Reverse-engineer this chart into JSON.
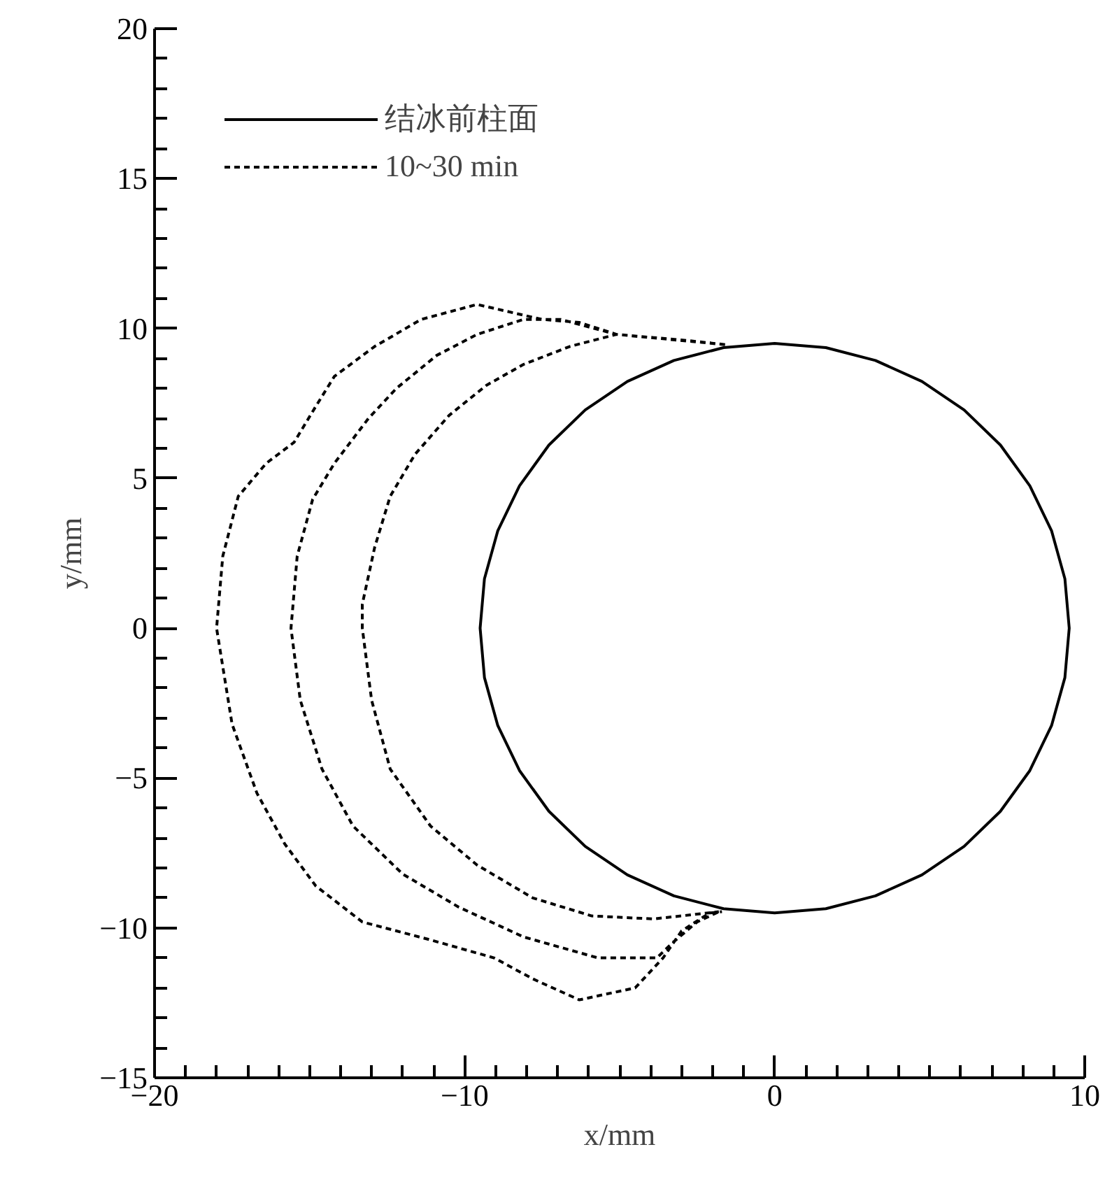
{
  "chart_data": {
    "type": "line",
    "xlabel": "x/mm",
    "ylabel": "y/mm",
    "legend": "top left",
    "grid": false,
    "xlim": [
      -20,
      10
    ],
    "ylim": [
      -15,
      20
    ],
    "xticks": [
      {
        "value": -20,
        "label": "−20"
      },
      {
        "value": -19,
        "label": null
      },
      {
        "value": -18,
        "label": null
      },
      {
        "value": -17,
        "label": null
      },
      {
        "value": -16,
        "label": null
      },
      {
        "value": -15,
        "label": null
      },
      {
        "value": -14,
        "label": null
      },
      {
        "value": -13,
        "label": null
      },
      {
        "value": -12,
        "label": null
      },
      {
        "value": -11,
        "label": null
      },
      {
        "value": -10,
        "label": "−10"
      },
      {
        "value": -9,
        "label": null
      },
      {
        "value": -8,
        "label": null
      },
      {
        "value": -7,
        "label": null
      },
      {
        "value": -6,
        "label": null
      },
      {
        "value": -5,
        "label": null
      },
      {
        "value": -4,
        "label": null
      },
      {
        "value": -3,
        "label": null
      },
      {
        "value": -2,
        "label": null
      },
      {
        "value": -1,
        "label": null
      },
      0,
      {
        "value": 1,
        "label": null
      },
      {
        "value": 2,
        "label": null
      },
      {
        "value": 3,
        "label": null
      },
      {
        "value": 4,
        "label": null
      },
      {
        "value": 5,
        "label": null
      },
      {
        "value": 6,
        "label": null
      },
      {
        "value": 7,
        "label": null
      },
      {
        "value": 8,
        "label": null
      },
      {
        "value": 9,
        "label": null
      },
      10
    ],
    "yticks": [
      {
        "value": -15,
        "label": "−15"
      },
      {
        "value": -14,
        "label": null
      },
      {
        "value": -13,
        "label": null
      },
      {
        "value": -12,
        "label": null
      },
      {
        "value": -11,
        "label": null
      },
      {
        "value": -10,
        "label": "−10"
      },
      {
        "value": -9,
        "label": null
      },
      {
        "value": -8,
        "label": null
      },
      {
        "value": -7,
        "label": null
      },
      {
        "value": -6,
        "label": null
      },
      {
        "value": -5,
        "label": "−5"
      },
      {
        "value": -4,
        "label": null
      },
      {
        "value": -3,
        "label": null
      },
      {
        "value": -2,
        "label": null
      },
      {
        "value": -1,
        "label": null
      },
      0,
      {
        "value": 1,
        "label": null
      },
      {
        "value": 2,
        "label": null
      },
      {
        "value": 3,
        "label": null
      },
      {
        "value": 4,
        "label": null
      },
      5,
      {
        "value": 6,
        "label": null
      },
      {
        "value": 7,
        "label": null
      },
      {
        "value": 8,
        "label": null
      },
      {
        "value": 9,
        "label": null
      },
      10,
      {
        "value": 11,
        "label": null
      },
      {
        "value": 12,
        "label": null
      },
      {
        "value": 13,
        "label": null
      },
      {
        "value": 14,
        "label": null
      },
      15,
      {
        "value": 16,
        "label": null
      },
      {
        "value": 17,
        "label": null
      },
      {
        "value": 18,
        "label": null
      },
      {
        "value": 19,
        "label": null
      },
      20
    ],
    "series": [
      {
        "name": "结冰前柱面",
        "color": "#000000",
        "line_style": "solid",
        "x": [
          9.5,
          9.36,
          8.93,
          8.23,
          7.28,
          6.11,
          4.75,
          3.25,
          1.65,
          0,
          -1.65,
          -3.25,
          -4.75,
          -6.11,
          -7.28,
          -8.23,
          -8.93,
          -9.36,
          -9.5,
          -9.36,
          -8.93,
          -8.23,
          -7.28,
          -6.11,
          -4.75,
          -3.25,
          -1.65,
          0,
          1.65,
          3.25,
          4.75,
          6.11,
          7.28,
          8.23,
          8.93,
          9.36,
          9.5,
          9.36
        ],
        "values": [
          0,
          1.65,
          3.25,
          4.75,
          6.11,
          7.28,
          8.23,
          8.93,
          9.36,
          9.5,
          9.36,
          8.93,
          8.23,
          7.28,
          6.11,
          4.75,
          3.25,
          1.65,
          0,
          -1.65,
          -3.25,
          -4.75,
          -6.11,
          -7.28,
          -8.23,
          -8.93,
          -9.36,
          -9.5,
          -9.36,
          -8.93,
          -8.23,
          -7.28,
          -6.11,
          -4.75,
          -3.25,
          -1.65,
          0,
          1.65
        ]
      },
      {
        "name": "10~30 min",
        "color": "#000000",
        "line_style": "dashed",
        "x": [
          -1.6,
          -2.85,
          -5.1,
          -6.3,
          -7.5,
          -9.6,
          -11.4,
          -12.9,
          -14.2,
          -14.8,
          -15.5,
          -16.4,
          -17.3,
          -17.8,
          -18.0,
          -17.5,
          -16.7,
          -15.8,
          -14.8,
          -13.3,
          -11.1,
          -9.05,
          -7.8,
          -6.3,
          -4.5,
          -3.6,
          -3.0,
          -2.1,
          -1.7,
          null,
          -1.6,
          -5.1,
          -6.9,
          -8.1,
          -9.6,
          -10.9,
          -12.2,
          -13.1,
          -14.2,
          -14.9,
          -15.4,
          -15.6,
          -15.3,
          -14.6,
          -13.6,
          -12.0,
          -10.2,
          -8.1,
          -5.7,
          -3.8,
          -3.3,
          -2.5,
          -1.8,
          null,
          -1.6,
          -5.1,
          -6.6,
          -8.1,
          -9.3,
          -10.5,
          -11.6,
          -12.4,
          -12.9,
          -13.3,
          -13.3,
          -13.0,
          -12.4,
          -11.1,
          -9.6,
          -7.8,
          -5.9,
          -3.9,
          -1.8
        ],
        "values": [
          9.46,
          9.6,
          9.8,
          10.2,
          10.3,
          10.8,
          10.3,
          9.4,
          8.4,
          7.4,
          6.2,
          5.5,
          4.4,
          2.4,
          0,
          -3.2,
          -5.5,
          -7.2,
          -8.6,
          -9.8,
          -10.4,
          -11.0,
          -11.7,
          -12.4,
          -12.0,
          -11.0,
          -10.1,
          -9.5,
          -9.46,
          null,
          9.46,
          9.8,
          10.3,
          10.3,
          9.8,
          9.1,
          8.0,
          7.0,
          5.5,
          4.3,
          2.4,
          0,
          -2.4,
          -4.7,
          -6.6,
          -8.2,
          -9.3,
          -10.3,
          -11.0,
          -11.0,
          -10.5,
          -9.8,
          -9.46,
          null,
          9.46,
          9.8,
          9.4,
          8.8,
          8.1,
          7.1,
          5.8,
          4.4,
          2.7,
          0.8,
          0,
          -2.4,
          -4.7,
          -6.6,
          -7.9,
          -9.0,
          -9.6,
          -9.7,
          -9.46
        ]
      }
    ]
  }
}
